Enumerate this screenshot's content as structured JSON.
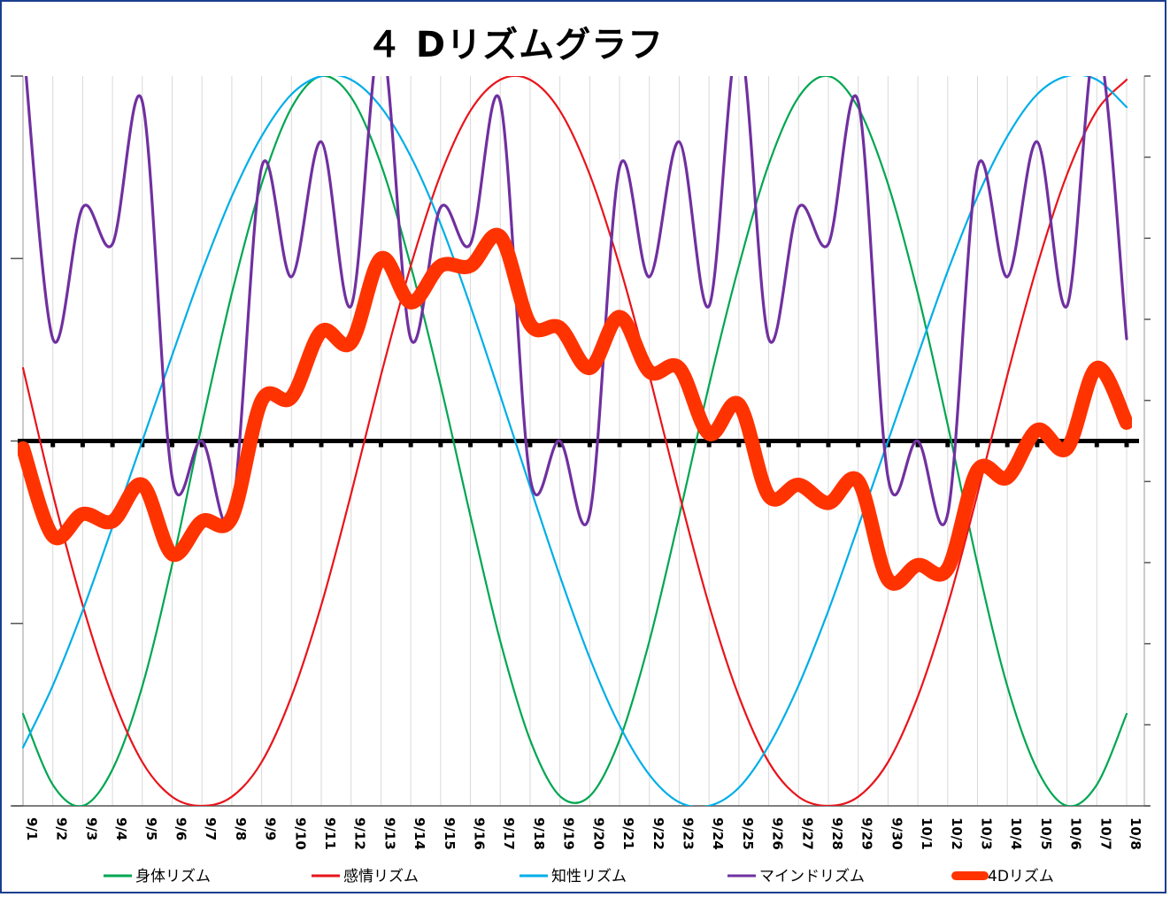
{
  "chart_data": {
    "type": "line",
    "title": "４ Dリズムグラフ",
    "categories": [
      "9/1",
      "9/2",
      "9/3",
      "9/4",
      "9/5",
      "9/6",
      "9/7",
      "9/8",
      "9/9",
      "9/10",
      "9/11",
      "9/12",
      "9/13",
      "9/14",
      "9/15",
      "9/16",
      "9/17",
      "9/18",
      "9/19",
      "9/20",
      "9/21",
      "9/22",
      "9/23",
      "9/24",
      "9/25",
      "9/26",
      "9/27",
      "9/28",
      "9/29",
      "9/30",
      "10/1",
      "10/2",
      "10/3",
      "10/4",
      "10/5",
      "10/6",
      "10/7",
      "10/8"
    ],
    "ylim": [
      -100,
      100
    ],
    "grid": {
      "vertical": true,
      "horizontal": false
    },
    "zero_line": true,
    "legend_position": "bottom",
    "series": [
      {
        "name": "身体リズム",
        "color": "#00a651",
        "values": [
          -74.8,
          -94.2,
          -100.0,
          -90.0,
          -67.2,
          -33.9,
          4.5,
          40.4,
          70.4,
          91.3,
          100.0,
          94.2,
          75.8,
          48.0,
          15.3,
          -20.5,
          -54.8,
          -81.9,
          -97.3,
          -97.3,
          -81.9,
          -54.8,
          -20.5,
          15.3,
          48.0,
          75.8,
          94.2,
          100.0,
          91.3,
          70.4,
          40.4,
          4.5,
          -33.9,
          -67.2,
          -90.0,
          -100.0,
          -94.2,
          -74.8
        ]
      },
      {
        "name": "感情リズム",
        "color": "#e8141b",
        "values": [
          20.0,
          -14.5,
          -45.0,
          -70.0,
          -88.0,
          -97.5,
          -100.0,
          -97.5,
          -88.0,
          -70.0,
          -45.0,
          -14.5,
          18.0,
          48.0,
          73.0,
          90.5,
          99.0,
          99.0,
          90.5,
          73.0,
          48.0,
          18.0,
          -14.5,
          -45.0,
          -70.0,
          -88.0,
          -97.5,
          -100.0,
          -97.5,
          -88.0,
          -70.0,
          -45.0,
          -14.5,
          18.0,
          48.0,
          73.0,
          90.5,
          99.0
        ]
      },
      {
        "name": "知性リズム",
        "color": "#00aee8",
        "values": [
          -84.0,
          -67.0,
          -46.5,
          -23.5,
          0.0,
          23.5,
          46.5,
          67.0,
          83.5,
          95.0,
          100.0,
          99.0,
          91.5,
          78.0,
          59.5,
          37.0,
          12.5,
          -12.5,
          -37.0,
          -59.5,
          -78.0,
          -91.5,
          -99.0,
          -100.0,
          -95.0,
          -83.5,
          -67.0,
          -46.5,
          -23.5,
          0.0,
          23.5,
          46.5,
          67.0,
          83.5,
          95.0,
          100.0,
          99.0,
          91.5
        ]
      },
      {
        "name": "マインドリズム",
        "color": "#7030a0",
        "values": [
          110.0,
          28.0,
          64.0,
          54.0,
          93.0,
          -10.0,
          0.0,
          -20.0,
          75.0,
          45.0,
          82.0,
          37.0,
          110.0,
          28.0,
          64.0,
          54.0,
          93.0,
          -10.0,
          0.0,
          -20.0,
          75.0,
          45.0,
          82.0,
          37.0,
          110.0,
          28.0,
          64.0,
          54.0,
          93.0,
          -10.0,
          0.0,
          -20.0,
          75.0,
          45.0,
          82.0,
          37.0,
          110.0,
          28.0
        ]
      },
      {
        "name": "4Dリズム",
        "color": "#ff3300",
        "values": [
          -2.0,
          -26.0,
          -20.0,
          -22.0,
          -12.0,
          -31.0,
          -22.0,
          -21.0,
          11.0,
          12.0,
          30.0,
          27.0,
          50.0,
          38.0,
          48.0,
          48.0,
          56.0,
          32.0,
          31.0,
          20.0,
          34.0,
          19.0,
          20.0,
          2.0,
          10.0,
          -15.0,
          -12.0,
          -17.0,
          -11.0,
          -38.0,
          -34.0,
          -35.0,
          -8.0,
          -10.0,
          3.0,
          -2.0,
          20.0,
          5.0
        ]
      }
    ]
  }
}
